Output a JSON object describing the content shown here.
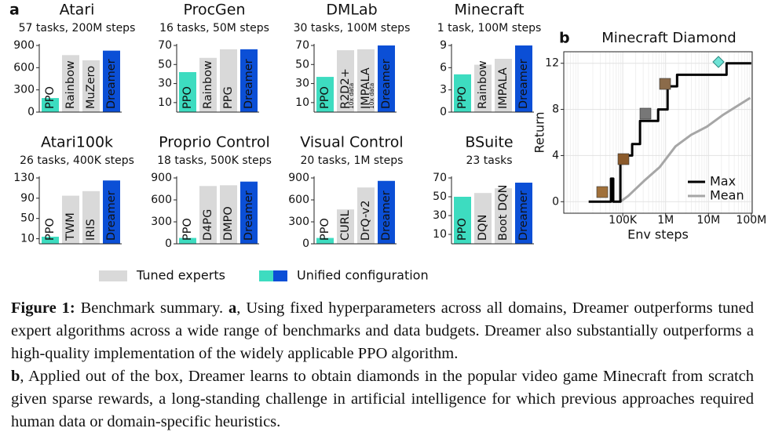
{
  "panels": [
    "a",
    "b"
  ],
  "legend": {
    "tuned": "Tuned experts",
    "unified": "Unified configuration"
  },
  "caption": {
    "label": "Figure 1:",
    "title": "Benchmark summary.",
    "a_label": "a",
    "a_text": ", Using fixed hyperparameters across all domains, Dreamer outperforms tuned expert algorithms across a wide range of benchmarks and data budgets. Dreamer also substantially outperforms a high-quality implementation of the widely applicable PPO algorithm.",
    "b_label": "b",
    "b_text": ", Applied out of the box, Dreamer learns to obtain diamonds in the popular video game Minecraft from scratch given sparse rewards, a long-standing challenge in artificial intelligence for which previous approaches required human data or domain-specific heuristics."
  },
  "chart_data": [
    {
      "type": "bar",
      "title": "Atari",
      "subtitle": "57 tasks, 200M steps",
      "categories": [
        "PPO",
        "Rainbow",
        "MuZero",
        "Dreamer"
      ],
      "values": [
        190,
        770,
        700,
        830
      ],
      "colors": [
        "#3ddcc0",
        "#d9d9d9",
        "#d9d9d9",
        "#0b4fd6"
      ],
      "ylim": [
        0,
        900
      ],
      "yticks": [
        0,
        300,
        600,
        900
      ]
    },
    {
      "type": "bar",
      "title": "ProcGen",
      "subtitle": "16 tasks, 50M steps",
      "categories": [
        "PPO",
        "Rainbow",
        "PPG",
        "Dreamer"
      ],
      "values": [
        42,
        57,
        66,
        66
      ],
      "colors": [
        "#3ddcc0",
        "#d9d9d9",
        "#d9d9d9",
        "#0b4fd6"
      ],
      "ylim": [
        0,
        70
      ],
      "yticks": [
        10,
        30,
        50,
        70
      ]
    },
    {
      "type": "bar",
      "title": "DMLab",
      "subtitle": "30 tasks, 100M steps",
      "categories": [
        "PPO",
        "R2D2+",
        "IMPALA",
        "Dreamer"
      ],
      "category_notes": [
        null,
        "10x data",
        "10x data",
        null
      ],
      "values": [
        37,
        65,
        66,
        70
      ],
      "colors": [
        "#3ddcc0",
        "#d9d9d9",
        "#d9d9d9",
        "#0b4fd6"
      ],
      "ylim": [
        0,
        70
      ],
      "yticks": [
        10,
        30,
        50,
        70
      ]
    },
    {
      "type": "bar",
      "title": "Minecraft",
      "subtitle": "1 task, 100M steps",
      "categories": [
        "PPO",
        "Rainbow",
        "IMPALA",
        "Dreamer"
      ],
      "values": [
        5.1,
        6.4,
        7.2,
        9
      ],
      "colors": [
        "#3ddcc0",
        "#d9d9d9",
        "#d9d9d9",
        "#0b4fd6"
      ],
      "ylim": [
        0,
        9
      ],
      "yticks": [
        0,
        3,
        6,
        9
      ]
    },
    {
      "type": "bar",
      "title": "Atari100k",
      "subtitle": "26 tasks, 400K steps",
      "categories": [
        "PPO",
        "TWM",
        "IRIS",
        "Dreamer"
      ],
      "values": [
        14,
        95,
        104,
        125
      ],
      "colors": [
        "#3ddcc0",
        "#d9d9d9",
        "#d9d9d9",
        "#0b4fd6"
      ],
      "ylim": [
        0,
        130
      ],
      "yticks": [
        10,
        50,
        90,
        130
      ]
    },
    {
      "type": "bar",
      "title": "Proprio Control",
      "subtitle": "18 tasks, 500K steps",
      "categories": [
        "PPO",
        "D4PG",
        "DMPO",
        "Dreamer"
      ],
      "values": [
        80,
        790,
        800,
        850
      ],
      "colors": [
        "#3ddcc0",
        "#d9d9d9",
        "#d9d9d9",
        "#0b4fd6"
      ],
      "ylim": [
        0,
        900
      ],
      "yticks": [
        0,
        300,
        600,
        900
      ]
    },
    {
      "type": "bar",
      "title": "Visual Control",
      "subtitle": "20 tasks, 1M steps",
      "categories": [
        "PPO",
        "CURL",
        "DrQ-v2",
        "Dreamer"
      ],
      "values": [
        80,
        470,
        770,
        860
      ],
      "colors": [
        "#3ddcc0",
        "#d9d9d9",
        "#d9d9d9",
        "#0b4fd6"
      ],
      "ylim": [
        0,
        900
      ],
      "yticks": [
        0,
        300,
        600,
        900
      ]
    },
    {
      "type": "bar",
      "title": "BSuite",
      "subtitle": "23 tasks",
      "categories": [
        "PPO",
        "DQN",
        "Boot DQN",
        "Dreamer"
      ],
      "values": [
        50,
        54,
        59,
        65
      ],
      "colors": [
        "#3ddcc0",
        "#d9d9d9",
        "#d9d9d9",
        "#0b4fd6"
      ],
      "ylim": [
        0,
        70
      ],
      "yticks": [
        10,
        30,
        50,
        70
      ]
    },
    {
      "type": "line",
      "title": "Minecraft Diamond",
      "x_label": "Env steps",
      "y_label": "Return",
      "xscale": "log",
      "grid": true,
      "legend_position": "lower right",
      "xlim": [
        4200,
        105000000
      ],
      "xticks": [
        {
          "value": 100000,
          "label": "100K"
        },
        {
          "value": 1000000,
          "label": "1M"
        },
        {
          "value": 10000000,
          "label": "10M"
        },
        {
          "value": 100000000,
          "label": "100M"
        }
      ],
      "ylim": [
        -1,
        13
      ],
      "yticks": [
        0,
        4,
        8,
        12
      ],
      "series": [
        {
          "name": "Max",
          "color": "#000000",
          "x": [
            16000,
            53000,
            53000,
            60000,
            60000,
            88000,
            88000,
            166000,
            166000,
            253000,
            253000,
            670000,
            670000,
            1110000,
            1110000,
            1850000,
            1850000,
            26400000,
            26400000,
            100000000
          ],
          "values": [
            0,
            0,
            2,
            2,
            0,
            0,
            4,
            4,
            5,
            5,
            7,
            7,
            8,
            8,
            10,
            10,
            11,
            11,
            12,
            12
          ]
        },
        {
          "name": "Mean",
          "color": "#a6a6a6",
          "x": [
            88000,
            134000,
            313000,
            728000,
            1700000,
            3950000,
            9200000,
            21400000,
            94000000
          ],
          "values": [
            0,
            0.5,
            1.8,
            3,
            4.8,
            5.8,
            6.5,
            7.5,
            9
          ]
        }
      ]
    }
  ]
}
